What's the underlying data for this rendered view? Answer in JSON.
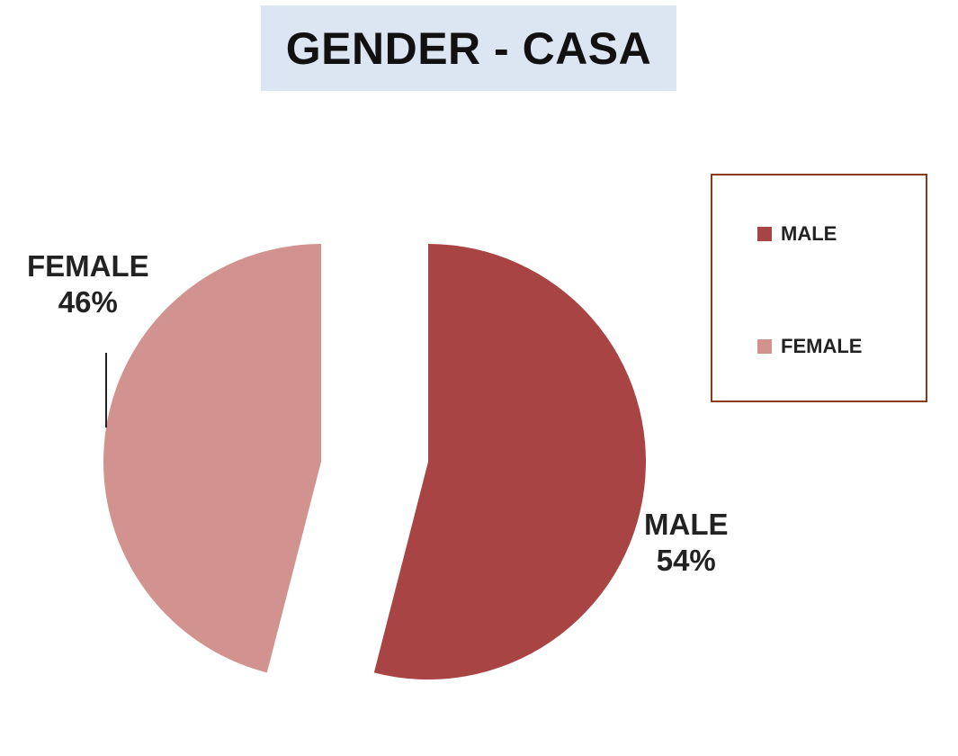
{
  "chart_data": {
    "type": "pie",
    "title": "GENDER - CASA",
    "slices": [
      {
        "label": "MALE",
        "value": 54,
        "pct_text": "54%",
        "color": "#a84444"
      },
      {
        "label": "FEMALE",
        "value": 46,
        "pct_text": "46%",
        "color": "#d29290"
      }
    ],
    "legend": {
      "placement": "right",
      "entries": [
        "MALE",
        "FEMALE"
      ]
    },
    "exploded": true
  }
}
